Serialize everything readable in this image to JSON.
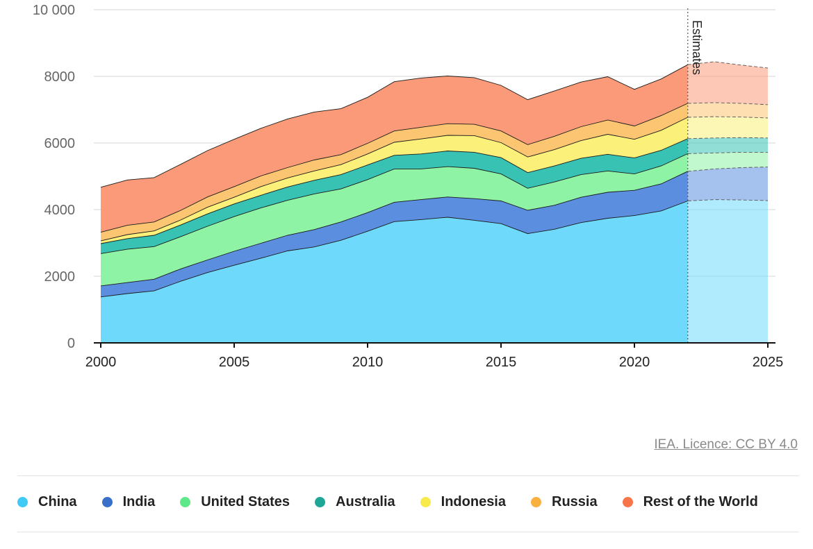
{
  "chart_data": {
    "type": "area",
    "stacked": true,
    "x": [
      2000,
      2001,
      2002,
      2003,
      2004,
      2005,
      2006,
      2007,
      2008,
      2009,
      2010,
      2011,
      2012,
      2013,
      2014,
      2015,
      2016,
      2017,
      2018,
      2019,
      2020,
      2021,
      2022,
      2023,
      2024,
      2025
    ],
    "estimate_from": 2022,
    "annotation": "Estimates",
    "ylim": [
      0,
      10000
    ],
    "yticks": [
      0,
      2000,
      4000,
      6000,
      8000,
      10000
    ],
    "ytick_labels": [
      "0",
      "2000",
      "4000",
      "6000",
      "8000",
      "10 000"
    ],
    "xticks": [
      2000,
      2005,
      2010,
      2015,
      2020,
      2025
    ],
    "xtick_labels": [
      "2000",
      "2005",
      "2010",
      "2015",
      "2020",
      "2025"
    ],
    "grid": true,
    "legend_position": "bottom",
    "series": [
      {
        "name": "China",
        "color": "#6fd9fb",
        "values": [
          1380,
          1480,
          1560,
          1850,
          2110,
          2330,
          2540,
          2760,
          2880,
          3080,
          3350,
          3640,
          3700,
          3770,
          3680,
          3580,
          3280,
          3410,
          3610,
          3740,
          3820,
          3960,
          4260,
          4300,
          4290,
          4270
        ]
      },
      {
        "name": "India",
        "color": "#5b8ede",
        "values": [
          330,
          330,
          350,
          370,
          380,
          420,
          450,
          470,
          520,
          550,
          560,
          580,
          600,
          610,
          650,
          680,
          700,
          720,
          760,
          780,
          760,
          810,
          890,
          920,
          970,
          1010
        ]
      },
      {
        "name": "United States",
        "color": "#8ff3a6",
        "values": [
          970,
          1000,
          980,
          970,
          1010,
          1040,
          1060,
          1050,
          1070,
          990,
          990,
          1000,
          920,
          910,
          910,
          810,
          660,
          700,
          680,
          640,
          490,
          540,
          530,
          480,
          460,
          440
        ]
      },
      {
        "name": "Australia",
        "color": "#37c2b4",
        "values": [
          300,
          320,
          340,
          350,
          370,
          380,
          380,
          400,
          410,
          430,
          440,
          410,
          450,
          470,
          480,
          490,
          470,
          480,
          490,
          500,
          480,
          470,
          450,
          450,
          440,
          430
        ]
      },
      {
        "name": "Indonesia",
        "color": "#fbf07a",
        "values": [
          80,
          120,
          130,
          150,
          200,
          200,
          260,
          270,
          280,
          300,
          330,
          390,
          450,
          470,
          500,
          450,
          470,
          490,
          530,
          600,
          560,
          600,
          640,
          640,
          620,
          600
        ]
      },
      {
        "name": "Russia",
        "color": "#fbc571",
        "values": [
          260,
          280,
          270,
          290,
          310,
          320,
          320,
          310,
          330,
          300,
          320,
          340,
          350,
          350,
          340,
          350,
          370,
          400,
          420,
          430,
          400,
          440,
          420,
          420,
          410,
          400
        ]
      },
      {
        "name": "Rest of the World",
        "color": "#fb9a78",
        "values": [
          1350,
          1360,
          1330,
          1380,
          1390,
          1420,
          1430,
          1460,
          1440,
          1380,
          1380,
          1480,
          1480,
          1430,
          1400,
          1370,
          1350,
          1360,
          1340,
          1300,
          1100,
          1100,
          1160,
          1230,
          1150,
          1100
        ]
      }
    ]
  },
  "legend": {
    "items": [
      {
        "label": "China",
        "color": "#3fc9f5"
      },
      {
        "label": "India",
        "color": "#3a6fc9"
      },
      {
        "label": "United States",
        "color": "#5fe88a"
      },
      {
        "label": "Australia",
        "color": "#1ea697"
      },
      {
        "label": "Indonesia",
        "color": "#f7ea4a"
      },
      {
        "label": "Russia",
        "color": "#f8b13f"
      },
      {
        "label": "Rest of the World",
        "color": "#f8744a"
      }
    ]
  },
  "credit": "IEA. Licence: CC BY 4.0"
}
